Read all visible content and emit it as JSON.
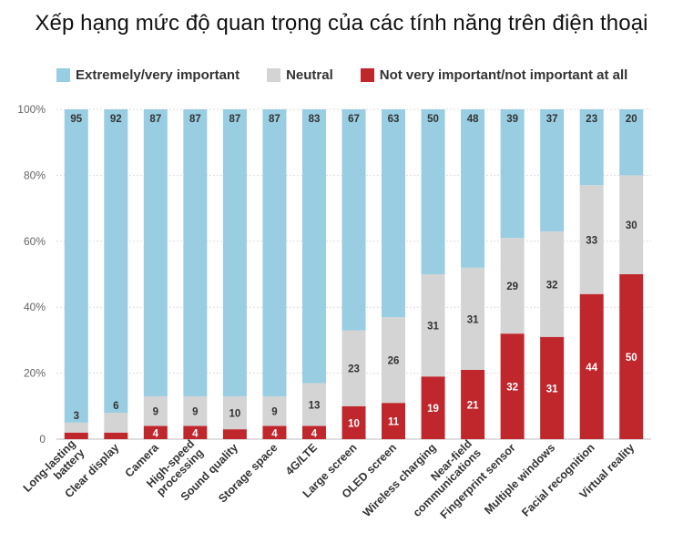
{
  "title": "Xếp hạng mức độ quan trọng của các tính năng trên điện thoại",
  "legend": [
    {
      "label": "Extremely/very important",
      "color": "#98cde2"
    },
    {
      "label": "Neutral",
      "color": "#d4d4d4"
    },
    {
      "label": "Not very important/not important at all",
      "color": "#c0272d"
    }
  ],
  "chart_data": {
    "type": "bar",
    "stacked": true,
    "normalized": true,
    "title": "Xếp hạng mức độ quan trọng của các tính năng trên điện thoại",
    "xlabel": "",
    "ylabel": "",
    "ylim": [
      0,
      100
    ],
    "yticks": [
      "0",
      "20%",
      "40%",
      "60%",
      "80%",
      "100%"
    ],
    "grid": true,
    "legend_position": "top",
    "categories": [
      "Long-lasting battery",
      "Clear display",
      "Camera",
      "High-speed processing",
      "Sound quality",
      "Storage space",
      "4G/LTE",
      "Large screen",
      "OLED screen",
      "Wireless charging",
      "Near-field communications",
      "Fingerprint sensor",
      "Multiple windows",
      "Facial recognition",
      "Virtual reality"
    ],
    "category_lines": [
      [
        "Long-lasting",
        "battery"
      ],
      [
        "Clear display"
      ],
      [
        "Camera"
      ],
      [
        "High-speed",
        "processing"
      ],
      [
        "Sound quality"
      ],
      [
        "Storage space"
      ],
      [
        "4G/LTE"
      ],
      [
        "Large screen"
      ],
      [
        "OLED screen"
      ],
      [
        "Wireless charging"
      ],
      [
        "Near-field",
        "communications"
      ],
      [
        "Fingerprint sensor"
      ],
      [
        "Multiple windows"
      ],
      [
        "Facial recognition"
      ],
      [
        "Virtual reality"
      ]
    ],
    "series": [
      {
        "name": "Not very important/not important at all",
        "color": "#c0272d",
        "label_color": "#ffffff",
        "values": [
          2,
          2,
          4,
          4,
          3,
          4,
          4,
          10,
          11,
          19,
          21,
          32,
          31,
          44,
          50
        ],
        "labels": [
          "",
          "",
          "4",
          "4",
          "",
          "4",
          "4",
          "10",
          "11",
          "19",
          "21",
          "32",
          "31",
          "44",
          "50"
        ]
      },
      {
        "name": "Neutral",
        "color": "#d4d4d4",
        "label_color": "#333333",
        "values": [
          3,
          6,
          9,
          9,
          10,
          9,
          13,
          23,
          26,
          31,
          31,
          29,
          32,
          33,
          30
        ],
        "labels": [
          "3",
          "6",
          "9",
          "9",
          "10",
          "9",
          "13",
          "23",
          "26",
          "31",
          "31",
          "29",
          "32",
          "33",
          "30"
        ]
      },
      {
        "name": "Extremely/very important",
        "color": "#98cde2",
        "label_color": "#333333",
        "values": [
          95,
          92,
          87,
          87,
          87,
          87,
          83,
          67,
          63,
          50,
          48,
          39,
          37,
          23,
          20
        ],
        "labels": [
          "95",
          "92",
          "87",
          "87",
          "87",
          "87",
          "83",
          "67",
          "63",
          "50",
          "48",
          "39",
          "37",
          "23",
          "20"
        ]
      }
    ]
  }
}
